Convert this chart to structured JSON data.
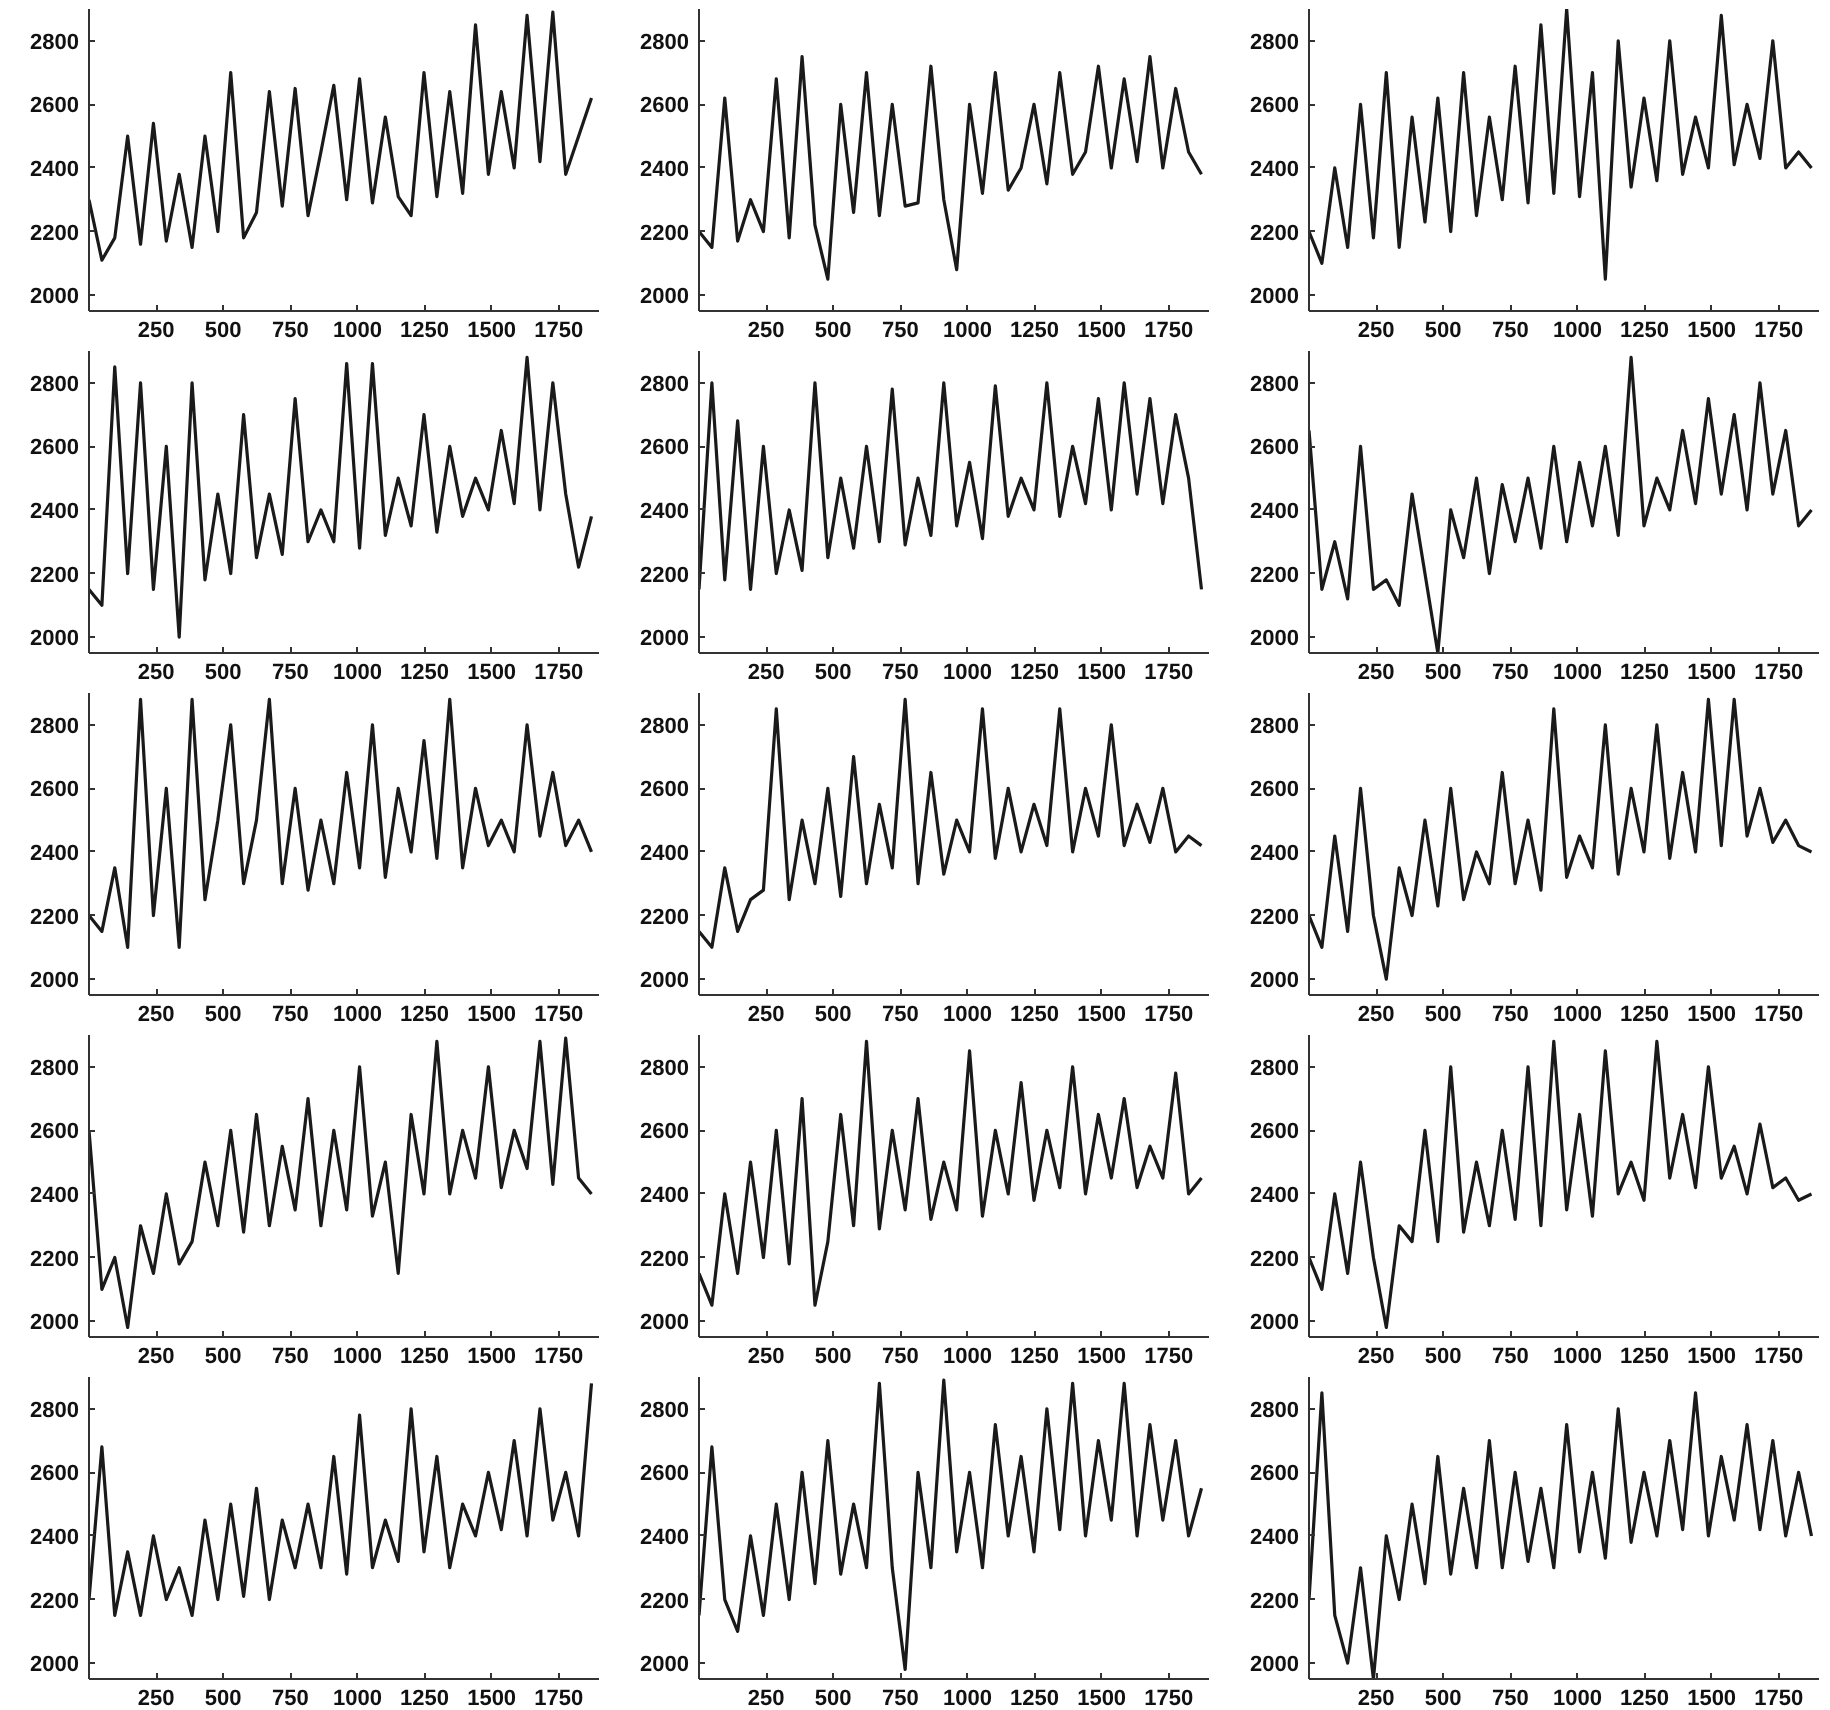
{
  "chart_data": [
    {
      "type": "line",
      "xlim": [
        0,
        1900
      ],
      "ylim": [
        1950,
        2900
      ],
      "xticks": [
        250,
        500,
        750,
        1000,
        1250,
        1500,
        1750
      ],
      "yticks": [
        2000,
        2200,
        2400,
        2600,
        2800
      ],
      "grid": false,
      "x": [
        0,
        48,
        96,
        144,
        192,
        240,
        288,
        336,
        384,
        432,
        480,
        528,
        576,
        624,
        672,
        720,
        768,
        816,
        864,
        912,
        960,
        1008,
        1056,
        1104,
        1152,
        1200,
        1248,
        1296,
        1344,
        1392,
        1440,
        1488,
        1536,
        1584,
        1632,
        1680,
        1728,
        1776,
        1824,
        1872
      ],
      "series": [
        {
          "color": "#1a1a1a",
          "values": [
            2300,
            2110,
            2180,
            2500,
            2160,
            2540,
            2170,
            2380,
            2150,
            2500,
            2200,
            2700,
            2180,
            2260,
            2640,
            2280,
            2650,
            2250,
            2450,
            2660,
            2300,
            2680,
            2290,
            2560,
            2310,
            2250,
            2700,
            2310,
            2640,
            2320,
            2850,
            2380,
            2640,
            2400,
            2880,
            2420,
            2890,
            2380,
            2500,
            2620
          ]
        }
      ]
    },
    {
      "type": "line",
      "xlim": [
        0,
        1900
      ],
      "ylim": [
        1950,
        2900
      ],
      "xticks": [
        250,
        500,
        750,
        1000,
        1250,
        1500,
        1750
      ],
      "yticks": [
        2000,
        2200,
        2400,
        2600,
        2800
      ],
      "grid": false,
      "x": [
        0,
        48,
        96,
        144,
        192,
        240,
        288,
        336,
        384,
        432,
        480,
        528,
        576,
        624,
        672,
        720,
        768,
        816,
        864,
        912,
        960,
        1008,
        1056,
        1104,
        1152,
        1200,
        1248,
        1296,
        1344,
        1392,
        1440,
        1488,
        1536,
        1584,
        1632,
        1680,
        1728,
        1776,
        1824,
        1872
      ],
      "series": [
        {
          "color": "#1a1a1a",
          "values": [
            2200,
            2150,
            2620,
            2170,
            2300,
            2200,
            2680,
            2180,
            2750,
            2220,
            2050,
            2600,
            2260,
            2700,
            2250,
            2600,
            2280,
            2290,
            2720,
            2300,
            2080,
            2600,
            2320,
            2700,
            2330,
            2400,
            2600,
            2350,
            2700,
            2380,
            2450,
            2720,
            2400,
            2680,
            2420,
            2750,
            2400,
            2650,
            2450,
            2380
          ]
        }
      ]
    },
    {
      "type": "line",
      "xlim": [
        0,
        1900
      ],
      "ylim": [
        1950,
        2900
      ],
      "xticks": [
        250,
        500,
        750,
        1000,
        1250,
        1500,
        1750
      ],
      "yticks": [
        2000,
        2200,
        2400,
        2600,
        2800
      ],
      "grid": false,
      "x": [
        0,
        48,
        96,
        144,
        192,
        240,
        288,
        336,
        384,
        432,
        480,
        528,
        576,
        624,
        672,
        720,
        768,
        816,
        864,
        912,
        960,
        1008,
        1056,
        1104,
        1152,
        1200,
        1248,
        1296,
        1344,
        1392,
        1440,
        1488,
        1536,
        1584,
        1632,
        1680,
        1728,
        1776,
        1824,
        1872
      ],
      "series": [
        {
          "color": "#1a1a1a",
          "values": [
            2200,
            2100,
            2400,
            2150,
            2600,
            2180,
            2700,
            2150,
            2560,
            2230,
            2620,
            2200,
            2700,
            2250,
            2560,
            2300,
            2720,
            2290,
            2850,
            2320,
            2900,
            2310,
            2700,
            2050,
            2800,
            2340,
            2620,
            2360,
            2800,
            2380,
            2560,
            2400,
            2880,
            2410,
            2600,
            2430,
            2800,
            2400,
            2450,
            2400
          ]
        }
      ]
    },
    {
      "type": "line",
      "xlim": [
        0,
        1900
      ],
      "ylim": [
        1950,
        2900
      ],
      "xticks": [
        250,
        500,
        750,
        1000,
        1250,
        1500,
        1750
      ],
      "yticks": [
        2000,
        2200,
        2400,
        2600,
        2800
      ],
      "grid": false,
      "x": [
        0,
        48,
        96,
        144,
        192,
        240,
        288,
        336,
        384,
        432,
        480,
        528,
        576,
        624,
        672,
        720,
        768,
        816,
        864,
        912,
        960,
        1008,
        1056,
        1104,
        1152,
        1200,
        1248,
        1296,
        1344,
        1392,
        1440,
        1488,
        1536,
        1584,
        1632,
        1680,
        1728,
        1776,
        1824,
        1872
      ],
      "series": [
        {
          "color": "#1a1a1a",
          "values": [
            2150,
            2100,
            2850,
            2200,
            2800,
            2150,
            2600,
            2000,
            2800,
            2180,
            2450,
            2200,
            2700,
            2250,
            2450,
            2260,
            2750,
            2300,
            2400,
            2300,
            2860,
            2280,
            2860,
            2320,
            2500,
            2350,
            2700,
            2330,
            2600,
            2380,
            2500,
            2400,
            2650,
            2420,
            2880,
            2400,
            2800,
            2450,
            2220,
            2380
          ]
        }
      ]
    },
    {
      "type": "line",
      "xlim": [
        0,
        1900
      ],
      "ylim": [
        1950,
        2900
      ],
      "xticks": [
        250,
        500,
        750,
        1000,
        1250,
        1500,
        1750
      ],
      "yticks": [
        2000,
        2200,
        2400,
        2600,
        2800
      ],
      "grid": false,
      "x": [
        0,
        48,
        96,
        144,
        192,
        240,
        288,
        336,
        384,
        432,
        480,
        528,
        576,
        624,
        672,
        720,
        768,
        816,
        864,
        912,
        960,
        1008,
        1056,
        1104,
        1152,
        1200,
        1248,
        1296,
        1344,
        1392,
        1440,
        1488,
        1536,
        1584,
        1632,
        1680,
        1728,
        1776,
        1824,
        1872
      ],
      "series": [
        {
          "color": "#1a1a1a",
          "values": [
            2150,
            2800,
            2180,
            2680,
            2150,
            2600,
            2200,
            2400,
            2210,
            2800,
            2250,
            2500,
            2280,
            2600,
            2300,
            2780,
            2290,
            2500,
            2320,
            2800,
            2350,
            2550,
            2310,
            2790,
            2380,
            2500,
            2400,
            2800,
            2380,
            2600,
            2420,
            2750,
            2400,
            2800,
            2450,
            2750,
            2420,
            2700,
            2500,
            2150
          ]
        }
      ]
    },
    {
      "type": "line",
      "xlim": [
        0,
        1900
      ],
      "ylim": [
        1950,
        2900
      ],
      "xticks": [
        250,
        500,
        750,
        1000,
        1250,
        1500,
        1750
      ],
      "yticks": [
        2000,
        2200,
        2400,
        2600,
        2800
      ],
      "grid": false,
      "x": [
        0,
        48,
        96,
        144,
        192,
        240,
        288,
        336,
        384,
        432,
        480,
        528,
        576,
        624,
        672,
        720,
        768,
        816,
        864,
        912,
        960,
        1008,
        1056,
        1104,
        1152,
        1200,
        1248,
        1296,
        1344,
        1392,
        1440,
        1488,
        1536,
        1584,
        1632,
        1680,
        1728,
        1776,
        1824,
        1872
      ],
      "series": [
        {
          "color": "#1a1a1a",
          "values": [
            2650,
            2150,
            2300,
            2120,
            2600,
            2150,
            2180,
            2100,
            2450,
            2200,
            1950,
            2400,
            2250,
            2500,
            2200,
            2480,
            2300,
            2500,
            2280,
            2600,
            2300,
            2550,
            2350,
            2600,
            2320,
            2880,
            2350,
            2500,
            2400,
            2650,
            2420,
            2750,
            2450,
            2700,
            2400,
            2800,
            2450,
            2650,
            2350,
            2400
          ]
        }
      ]
    },
    {
      "type": "line",
      "xlim": [
        0,
        1900
      ],
      "ylim": [
        1950,
        2900
      ],
      "xticks": [
        250,
        500,
        750,
        1000,
        1250,
        1500,
        1750
      ],
      "yticks": [
        2000,
        2200,
        2400,
        2600,
        2800
      ],
      "grid": false,
      "x": [
        0,
        48,
        96,
        144,
        192,
        240,
        288,
        336,
        384,
        432,
        480,
        528,
        576,
        624,
        672,
        720,
        768,
        816,
        864,
        912,
        960,
        1008,
        1056,
        1104,
        1152,
        1200,
        1248,
        1296,
        1344,
        1392,
        1440,
        1488,
        1536,
        1584,
        1632,
        1680,
        1728,
        1776,
        1824,
        1872
      ],
      "series": [
        {
          "color": "#1a1a1a",
          "values": [
            2200,
            2150,
            2350,
            2100,
            2880,
            2200,
            2600,
            2100,
            2880,
            2250,
            2500,
            2800,
            2300,
            2500,
            2880,
            2300,
            2600,
            2280,
            2500,
            2300,
            2650,
            2350,
            2800,
            2320,
            2600,
            2400,
            2750,
            2380,
            2880,
            2350,
            2600,
            2420,
            2500,
            2400,
            2800,
            2450,
            2650,
            2420,
            2500,
            2400
          ]
        }
      ]
    },
    {
      "type": "line",
      "xlim": [
        0,
        1900
      ],
      "ylim": [
        1950,
        2900
      ],
      "xticks": [
        250,
        500,
        750,
        1000,
        1250,
        1500,
        1750
      ],
      "yticks": [
        2000,
        2200,
        2400,
        2600,
        2800
      ],
      "grid": false,
      "x": [
        0,
        48,
        96,
        144,
        192,
        240,
        288,
        336,
        384,
        432,
        480,
        528,
        576,
        624,
        672,
        720,
        768,
        816,
        864,
        912,
        960,
        1008,
        1056,
        1104,
        1152,
        1200,
        1248,
        1296,
        1344,
        1392,
        1440,
        1488,
        1536,
        1584,
        1632,
        1680,
        1728,
        1776,
        1824,
        1872
      ],
      "series": [
        {
          "color": "#1a1a1a",
          "values": [
            2150,
            2100,
            2350,
            2150,
            2250,
            2280,
            2850,
            2250,
            2500,
            2300,
            2600,
            2260,
            2700,
            2300,
            2550,
            2350,
            2880,
            2300,
            2650,
            2330,
            2500,
            2400,
            2850,
            2380,
            2600,
            2400,
            2550,
            2420,
            2850,
            2400,
            2600,
            2450,
            2800,
            2420,
            2550,
            2430,
            2600,
            2400,
            2450,
            2420
          ]
        }
      ]
    },
    {
      "type": "line",
      "xlim": [
        0,
        1900
      ],
      "ylim": [
        1950,
        2900
      ],
      "xticks": [
        250,
        500,
        750,
        1000,
        1250,
        1500,
        1750
      ],
      "yticks": [
        2000,
        2200,
        2400,
        2600,
        2800
      ],
      "grid": false,
      "x": [
        0,
        48,
        96,
        144,
        192,
        240,
        288,
        336,
        384,
        432,
        480,
        528,
        576,
        624,
        672,
        720,
        768,
        816,
        864,
        912,
        960,
        1008,
        1056,
        1104,
        1152,
        1200,
        1248,
        1296,
        1344,
        1392,
        1440,
        1488,
        1536,
        1584,
        1632,
        1680,
        1728,
        1776,
        1824,
        1872
      ],
      "series": [
        {
          "color": "#1a1a1a",
          "values": [
            2200,
            2100,
            2450,
            2150,
            2600,
            2200,
            2000,
            2350,
            2200,
            2500,
            2230,
            2600,
            2250,
            2400,
            2300,
            2650,
            2300,
            2500,
            2280,
            2850,
            2320,
            2450,
            2350,
            2800,
            2330,
            2600,
            2400,
            2800,
            2380,
            2650,
            2400,
            2880,
            2420,
            2880,
            2450,
            2600,
            2430,
            2500,
            2420,
            2400
          ]
        }
      ]
    },
    {
      "type": "line",
      "xlim": [
        0,
        1900
      ],
      "ylim": [
        1950,
        2900
      ],
      "xticks": [
        250,
        500,
        750,
        1000,
        1250,
        1500,
        1750
      ],
      "yticks": [
        2000,
        2200,
        2400,
        2600,
        2800
      ],
      "grid": false,
      "x": [
        0,
        48,
        96,
        144,
        192,
        240,
        288,
        336,
        384,
        432,
        480,
        528,
        576,
        624,
        672,
        720,
        768,
        816,
        864,
        912,
        960,
        1008,
        1056,
        1104,
        1152,
        1200,
        1248,
        1296,
        1344,
        1392,
        1440,
        1488,
        1536,
        1584,
        1632,
        1680,
        1728,
        1776,
        1824,
        1872
      ],
      "series": [
        {
          "color": "#1a1a1a",
          "values": [
            2600,
            2100,
            2200,
            1980,
            2300,
            2150,
            2400,
            2180,
            2250,
            2500,
            2300,
            2600,
            2280,
            2650,
            2300,
            2550,
            2350,
            2700,
            2300,
            2600,
            2350,
            2800,
            2330,
            2500,
            2150,
            2650,
            2400,
            2880,
            2400,
            2600,
            2450,
            2800,
            2420,
            2600,
            2480,
            2880,
            2430,
            2890,
            2450,
            2400
          ]
        }
      ]
    },
    {
      "type": "line",
      "xlim": [
        0,
        1900
      ],
      "ylim": [
        1950,
        2900
      ],
      "xticks": [
        250,
        500,
        750,
        1000,
        1250,
        1500,
        1750
      ],
      "yticks": [
        2000,
        2200,
        2400,
        2600,
        2800
      ],
      "grid": false,
      "x": [
        0,
        48,
        96,
        144,
        192,
        240,
        288,
        336,
        384,
        432,
        480,
        528,
        576,
        624,
        672,
        720,
        768,
        816,
        864,
        912,
        960,
        1008,
        1056,
        1104,
        1152,
        1200,
        1248,
        1296,
        1344,
        1392,
        1440,
        1488,
        1536,
        1584,
        1632,
        1680,
        1728,
        1776,
        1824,
        1872
      ],
      "series": [
        {
          "color": "#1a1a1a",
          "values": [
            2150,
            2050,
            2400,
            2150,
            2500,
            2200,
            2600,
            2180,
            2700,
            2050,
            2250,
            2650,
            2300,
            2880,
            2290,
            2600,
            2350,
            2700,
            2320,
            2500,
            2350,
            2850,
            2330,
            2600,
            2400,
            2750,
            2380,
            2600,
            2420,
            2800,
            2400,
            2650,
            2450,
            2700,
            2420,
            2550,
            2450,
            2780,
            2400,
            2450
          ]
        }
      ]
    },
    {
      "type": "line",
      "xlim": [
        0,
        1900
      ],
      "ylim": [
        1950,
        2900
      ],
      "xticks": [
        250,
        500,
        750,
        1000,
        1250,
        1500,
        1750
      ],
      "yticks": [
        2000,
        2200,
        2400,
        2600,
        2800
      ],
      "grid": false,
      "x": [
        0,
        48,
        96,
        144,
        192,
        240,
        288,
        336,
        384,
        432,
        480,
        528,
        576,
        624,
        672,
        720,
        768,
        816,
        864,
        912,
        960,
        1008,
        1056,
        1104,
        1152,
        1200,
        1248,
        1296,
        1344,
        1392,
        1440,
        1488,
        1536,
        1584,
        1632,
        1680,
        1728,
        1776,
        1824,
        1872
      ],
      "series": [
        {
          "color": "#1a1a1a",
          "values": [
            2200,
            2100,
            2400,
            2150,
            2500,
            2200,
            1980,
            2300,
            2250,
            2600,
            2250,
            2800,
            2280,
            2500,
            2300,
            2600,
            2320,
            2800,
            2300,
            2880,
            2350,
            2650,
            2330,
            2850,
            2400,
            2500,
            2380,
            2880,
            2450,
            2650,
            2420,
            2800,
            2450,
            2550,
            2400,
            2620,
            2420,
            2450,
            2380,
            2400
          ]
        }
      ]
    },
    {
      "type": "line",
      "xlim": [
        0,
        1900
      ],
      "ylim": [
        1950,
        2900
      ],
      "xticks": [
        250,
        500,
        750,
        1000,
        1250,
        1500,
        1750
      ],
      "yticks": [
        2000,
        2200,
        2400,
        2600,
        2800
      ],
      "grid": false,
      "x": [
        0,
        48,
        96,
        144,
        192,
        240,
        288,
        336,
        384,
        432,
        480,
        528,
        576,
        624,
        672,
        720,
        768,
        816,
        864,
        912,
        960,
        1008,
        1056,
        1104,
        1152,
        1200,
        1248,
        1296,
        1344,
        1392,
        1440,
        1488,
        1536,
        1584,
        1632,
        1680,
        1728,
        1776,
        1824,
        1872
      ],
      "series": [
        {
          "color": "#1a1a1a",
          "values": [
            2200,
            2680,
            2150,
            2350,
            2150,
            2400,
            2200,
            2300,
            2150,
            2450,
            2200,
            2500,
            2210,
            2550,
            2200,
            2450,
            2300,
            2500,
            2300,
            2650,
            2280,
            2780,
            2300,
            2450,
            2320,
            2800,
            2350,
            2650,
            2300,
            2500,
            2400,
            2600,
            2420,
            2700,
            2400,
            2800,
            2450,
            2600,
            2400,
            2880
          ]
        }
      ]
    },
    {
      "type": "line",
      "xlim": [
        0,
        1900
      ],
      "ylim": [
        1950,
        2900
      ],
      "xticks": [
        250,
        500,
        750,
        1000,
        1250,
        1500,
        1750
      ],
      "yticks": [
        2000,
        2200,
        2400,
        2600,
        2800
      ],
      "grid": false,
      "x": [
        0,
        48,
        96,
        144,
        192,
        240,
        288,
        336,
        384,
        432,
        480,
        528,
        576,
        624,
        672,
        720,
        768,
        816,
        864,
        912,
        960,
        1008,
        1056,
        1104,
        1152,
        1200,
        1248,
        1296,
        1344,
        1392,
        1440,
        1488,
        1536,
        1584,
        1632,
        1680,
        1728,
        1776,
        1824,
        1872
      ],
      "series": [
        {
          "color": "#1a1a1a",
          "values": [
            2150,
            2680,
            2200,
            2100,
            2400,
            2150,
            2500,
            2200,
            2600,
            2250,
            2700,
            2280,
            2500,
            2300,
            2880,
            2300,
            1980,
            2600,
            2300,
            2890,
            2350,
            2600,
            2300,
            2750,
            2400,
            2650,
            2350,
            2800,
            2420,
            2880,
            2400,
            2700,
            2450,
            2880,
            2400,
            2750,
            2450,
            2700,
            2400,
            2550
          ]
        }
      ]
    },
    {
      "type": "line",
      "xlim": [
        0,
        1900
      ],
      "ylim": [
        1950,
        2900
      ],
      "xticks": [
        250,
        500,
        750,
        1000,
        1250,
        1500,
        1750
      ],
      "yticks": [
        2000,
        2200,
        2400,
        2600,
        2800
      ],
      "grid": false,
      "x": [
        0,
        48,
        96,
        144,
        192,
        240,
        288,
        336,
        384,
        432,
        480,
        528,
        576,
        624,
        672,
        720,
        768,
        816,
        864,
        912,
        960,
        1008,
        1056,
        1104,
        1152,
        1200,
        1248,
        1296,
        1344,
        1392,
        1440,
        1488,
        1536,
        1584,
        1632,
        1680,
        1728,
        1776,
        1824,
        1872
      ],
      "series": [
        {
          "color": "#1a1a1a",
          "values": [
            2200,
            2850,
            2150,
            2000,
            2300,
            1950,
            2400,
            2200,
            2500,
            2250,
            2650,
            2280,
            2550,
            2300,
            2700,
            2300,
            2600,
            2320,
            2550,
            2300,
            2750,
            2350,
            2600,
            2330,
            2800,
            2380,
            2600,
            2400,
            2700,
            2420,
            2850,
            2400,
            2650,
            2450,
            2750,
            2420,
            2700,
            2400,
            2600,
            2400
          ]
        }
      ]
    }
  ]
}
